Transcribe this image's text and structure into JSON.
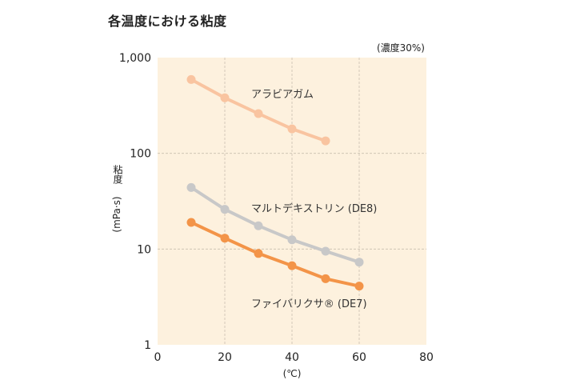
{
  "chart_data": {
    "type": "line",
    "title": "各温度における粘度",
    "subtitle": "(濃度30%)",
    "ylabel_top": "粘度",
    "ylabel_unit": "(mPa·s)",
    "xlabel": "(℃)",
    "xlim": [
      0,
      80
    ],
    "ylim": [
      1,
      1000
    ],
    "yscale": "log",
    "grid": true,
    "x_ticks": [
      0,
      20,
      40,
      60,
      80
    ],
    "x_tick_labels": [
      "0",
      "20",
      "40",
      "60",
      "80"
    ],
    "y_ticks": [
      1,
      10,
      100,
      1000
    ],
    "y_tick_labels": [
      "1",
      "10",
      "100",
      "1,000"
    ],
    "series": [
      {
        "name": "アラビアガム",
        "color": "#f9c4a0",
        "x": [
          10,
          20,
          30,
          40,
          50
        ],
        "values": [
          590,
          380,
          260,
          180,
          135
        ]
      },
      {
        "name": "マルトデキストリン (DE8)",
        "color": "#c8c8c8",
        "x": [
          10,
          20,
          30,
          40,
          50,
          60
        ],
        "values": [
          44,
          26,
          17.5,
          12.5,
          9.5,
          7.3
        ]
      },
      {
        "name": "ファイバリクサ® (DE7)",
        "color": "#f39448",
        "x": [
          10,
          20,
          30,
          40,
          50,
          60
        ],
        "values": [
          19,
          13,
          9,
          6.7,
          4.9,
          4.1
        ]
      }
    ]
  },
  "colors": {
    "plot_bg": "#fdf1de",
    "grid": "#c9bfae"
  }
}
